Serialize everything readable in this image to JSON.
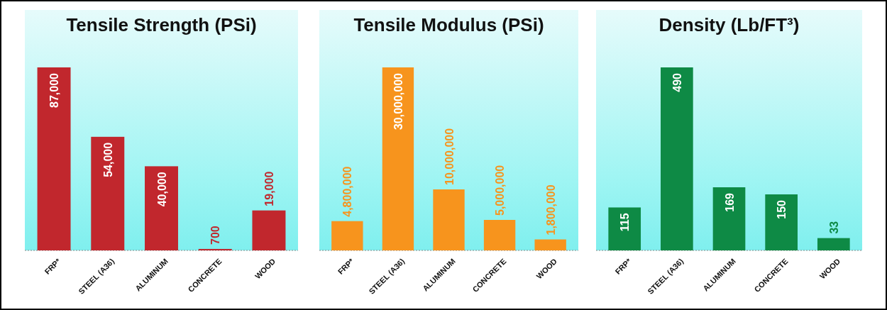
{
  "chart_data": [
    {
      "type": "bar",
      "title": "Tensile Strength (PSi)",
      "categories": [
        "FRP*",
        "STEEL (A36)",
        "ALUMINUM",
        "CONCRETE",
        "WOOD"
      ],
      "values": [
        87000,
        54000,
        40000,
        700,
        19000
      ],
      "value_labels": [
        "87,000",
        "54,000",
        "40,000",
        "700",
        "19,000"
      ],
      "color": "#c1272d"
    },
    {
      "type": "bar",
      "title": "Tensile Modulus (PSi)",
      "categories": [
        "FRP*",
        "STEEL (A36)",
        "ALUMINUM",
        "CONCRETE",
        "WOOD"
      ],
      "values": [
        4800000,
        30000000,
        10000000,
        5000000,
        1800000
      ],
      "value_labels": [
        "4,800,000",
        "30,000,000",
        "10,000,000",
        "5,000,000",
        "1,800,000"
      ],
      "color": "#f7941d"
    },
    {
      "type": "bar",
      "title": "Density (Lb/FT³)",
      "categories": [
        "FRP*",
        "STEEL (A36)",
        "ALUMINUM",
        "CONCRETE",
        "WOOD"
      ],
      "values": [
        115,
        490,
        169,
        150,
        33
      ],
      "value_labels": [
        "115",
        "490",
        "169",
        "150",
        "33"
      ],
      "color": "#0e8a45"
    }
  ]
}
